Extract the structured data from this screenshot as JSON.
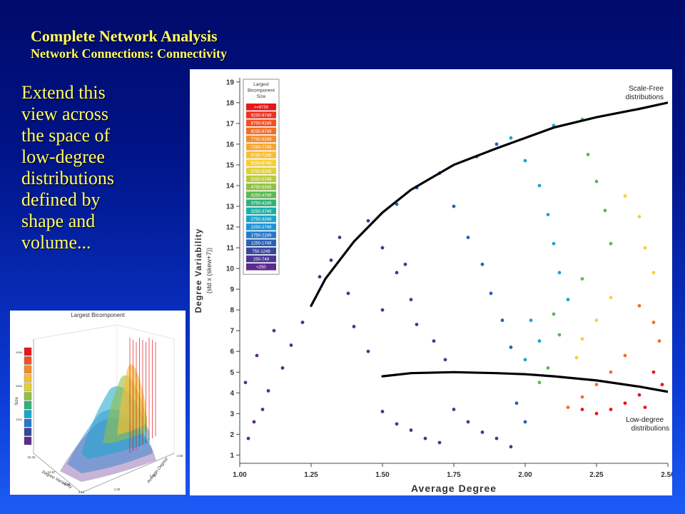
{
  "slide": {
    "title": "Complete Network Analysis",
    "subtitle": "Network Connections: Connectivity",
    "body_lines": [
      "Extend this",
      "view across",
      "the space of",
      "low-degree",
      "distributions",
      "defined by",
      "shape and",
      "volume..."
    ]
  },
  "chart_data": [
    {
      "type": "scatter",
      "xlabel": "Average Degree",
      "ylabel": "Degree Variability",
      "ylabel_sub": "(std x (skew+7))",
      "xlim": [
        1.0,
        2.5
      ],
      "ylim": [
        0.6,
        19.2
      ],
      "x_ticks": [
        "1.00",
        "1.25",
        "1.50",
        "1.75",
        "2.00",
        "2.25",
        "2.50"
      ],
      "y_ticks": [
        "1",
        "2",
        "3",
        "4",
        "5",
        "6",
        "7",
        "8",
        "9",
        "10",
        "11",
        "12",
        "13",
        "14",
        "15",
        "16",
        "17",
        "18",
        "19"
      ],
      "legend": {
        "title_lines": [
          "Largest",
          "Bicomponent",
          "Size"
        ],
        "placement": "top-left",
        "entries": [
          {
            "label": ">=9750",
            "color": "#e8161b"
          },
          {
            "label": "9250-9749",
            "color": "#eb3420"
          },
          {
            "label": "8750-9249",
            "color": "#ee5224"
          },
          {
            "label": "8250-8749",
            "color": "#f06f28"
          },
          {
            "label": "7750-8249",
            "color": "#f38b2d"
          },
          {
            "label": "7250-7749",
            "color": "#f6a632"
          },
          {
            "label": "6750-7249",
            "color": "#f8bd36"
          },
          {
            "label": "6250-6749",
            "color": "#f6cf3a"
          },
          {
            "label": "5750-6249",
            "color": "#dfd03c"
          },
          {
            "label": "5250-5749",
            "color": "#b9ca3e"
          },
          {
            "label": "4750-5249",
            "color": "#8fc244"
          },
          {
            "label": "4250-4749",
            "color": "#5cb954"
          },
          {
            "label": "3750-4249",
            "color": "#2fb27a"
          },
          {
            "label": "3250-3749",
            "color": "#1ab0a5"
          },
          {
            "label": "2750-3249",
            "color": "#1aa6cc"
          },
          {
            "label": "2250-2749",
            "color": "#1f93d7"
          },
          {
            "label": "1750-2249",
            "color": "#2579cc"
          },
          {
            "label": "1250-1749",
            "color": "#2c5fb6"
          },
          {
            "label": "750-1249",
            "color": "#37479e"
          },
          {
            "label": "250-749",
            "color": "#4a3693"
          },
          {
            "label": "<250",
            "color": "#5d2b8b"
          }
        ]
      },
      "annotations": [
        {
          "lines": [
            "Scale-Free",
            "distributions"
          ],
          "near": "top-right"
        },
        {
          "lines": [
            "Low-degree",
            "distributions"
          ],
          "near": "bottom-right"
        }
      ],
      "boundary_curves": [
        {
          "name": "scale-free boundary",
          "points": [
            [
              1.25,
              8.2
            ],
            [
              1.3,
              9.5
            ],
            [
              1.4,
              11.3
            ],
            [
              1.5,
              12.7
            ],
            [
              1.6,
              13.8
            ],
            [
              1.75,
              15.0
            ],
            [
              1.9,
              15.8
            ],
            [
              2.0,
              16.3
            ],
            [
              2.1,
              16.8
            ],
            [
              2.25,
              17.3
            ],
            [
              2.4,
              17.7
            ],
            [
              2.5,
              18.0
            ]
          ]
        },
        {
          "name": "low-degree boundary",
          "points": [
            [
              1.5,
              4.8
            ],
            [
              1.6,
              4.95
            ],
            [
              1.75,
              5.0
            ],
            [
              1.9,
              4.95
            ],
            [
              2.0,
              4.9
            ],
            [
              2.1,
              4.8
            ],
            [
              2.25,
              4.6
            ],
            [
              2.4,
              4.3
            ],
            [
              2.5,
              4.05
            ]
          ]
        }
      ],
      "series": [
        {
          "color_group": "<250",
          "points": [
            [
              1.03,
              1.8
            ],
            [
              1.05,
              2.6
            ],
            [
              1.08,
              3.2
            ],
            [
              1.1,
              4.1
            ],
            [
              1.15,
              5.2
            ],
            [
              1.18,
              6.3
            ],
            [
              1.22,
              7.4
            ],
            [
              1.28,
              9.6
            ],
            [
              1.32,
              10.4
            ],
            [
              1.38,
              8.8
            ],
            [
              1.4,
              7.2
            ],
            [
              1.45,
              6.0
            ],
            [
              1.5,
              3.1
            ],
            [
              1.55,
              2.5
            ],
            [
              1.6,
              2.2
            ],
            [
              1.65,
              1.8
            ],
            [
              1.7,
              1.6
            ],
            [
              1.02,
              4.5
            ],
            [
              1.06,
              5.8
            ],
            [
              1.12,
              7.0
            ]
          ]
        },
        {
          "color_group": "250-749",
          "points": [
            [
              1.35,
              11.5
            ],
            [
              1.45,
              12.3
            ],
            [
              1.5,
              11.0
            ],
            [
              1.55,
              9.8
            ],
            [
              1.6,
              8.5
            ],
            [
              1.62,
              7.3
            ],
            [
              1.68,
              6.5
            ],
            [
              1.72,
              5.6
            ],
            [
              1.75,
              3.2
            ],
            [
              1.8,
              2.6
            ],
            [
              1.85,
              2.1
            ],
            [
              1.9,
              1.8
            ],
            [
              1.95,
              1.4
            ],
            [
              1.5,
              8.0
            ],
            [
              1.58,
              10.2
            ]
          ]
        },
        {
          "color_group": "1250-1749",
          "points": [
            [
              1.55,
              13.1
            ],
            [
              1.62,
              13.9
            ],
            [
              1.7,
              14.6
            ],
            [
              1.75,
              13.0
            ],
            [
              1.8,
              11.5
            ],
            [
              1.85,
              10.2
            ],
            [
              1.88,
              8.8
            ],
            [
              1.92,
              7.5
            ],
            [
              1.95,
              6.2
            ],
            [
              1.97,
              3.5
            ],
            [
              2.0,
              2.6
            ],
            [
              1.83,
              15.4
            ],
            [
              1.9,
              16.0
            ]
          ]
        },
        {
          "color_group": "2750-3249",
          "points": [
            [
              1.95,
              16.3
            ],
            [
              2.0,
              15.2
            ],
            [
              2.05,
              14.0
            ],
            [
              2.08,
              12.6
            ],
            [
              2.1,
              11.2
            ],
            [
              2.12,
              9.8
            ],
            [
              2.15,
              8.5
            ],
            [
              2.02,
              7.5
            ],
            [
              2.05,
              6.5
            ],
            [
              2.0,
              5.6
            ],
            [
              2.1,
              16.9
            ]
          ]
        },
        {
          "color_group": "4250-4749",
          "points": [
            [
              2.2,
              17.2
            ],
            [
              2.22,
              15.5
            ],
            [
              2.25,
              14.2
            ],
            [
              2.28,
              12.8
            ],
            [
              2.3,
              11.2
            ],
            [
              2.2,
              9.5
            ],
            [
              2.1,
              7.8
            ],
            [
              2.12,
              6.8
            ],
            [
              2.08,
              5.2
            ],
            [
              2.05,
              4.5
            ]
          ]
        },
        {
          "color_group": "6250-6749",
          "points": [
            [
              2.35,
              13.5
            ],
            [
              2.4,
              12.5
            ],
            [
              2.42,
              11.0
            ],
            [
              2.45,
              9.8
            ],
            [
              2.3,
              8.6
            ],
            [
              2.25,
              7.5
            ],
            [
              2.2,
              6.6
            ],
            [
              2.18,
              5.7
            ]
          ]
        },
        {
          "color_group": "8250-8749",
          "points": [
            [
              2.4,
              8.2
            ],
            [
              2.45,
              7.4
            ],
            [
              2.47,
              6.5
            ],
            [
              2.35,
              5.8
            ],
            [
              2.3,
              5.0
            ],
            [
              2.25,
              4.4
            ],
            [
              2.2,
              3.8
            ],
            [
              2.15,
              3.3
            ]
          ]
        },
        {
          "color_group": ">=9750",
          "points": [
            [
              2.45,
              5.0
            ],
            [
              2.48,
              4.4
            ],
            [
              2.4,
              3.9
            ],
            [
              2.35,
              3.5
            ],
            [
              2.3,
              3.2
            ],
            [
              2.25,
              3.0
            ],
            [
              2.42,
              3.3
            ],
            [
              2.2,
              3.2
            ]
          ]
        }
      ]
    },
    {
      "type": "surface",
      "title": "Largest Bicomponent",
      "zlabel": "Size",
      "xlabel": "Degree Variability",
      "ylabel": "Average Degree",
      "z_ticks": [
        "9998",
        "6666",
        "3334"
      ],
      "x_ticks": [
        "19.34",
        "12.97",
        "6.10",
        "2.14"
      ],
      "y_ticks": [
        "1.00",
        "1.53",
        "2.50"
      ],
      "legend_colors": [
        "#e8161b",
        "#ee5224",
        "#f38b2d",
        "#f8bd36",
        "#dfd03c",
        "#8fc244",
        "#2fb27a",
        "#1aa6cc",
        "#2579cc",
        "#37479e",
        "#5d2b8b"
      ]
    }
  ]
}
